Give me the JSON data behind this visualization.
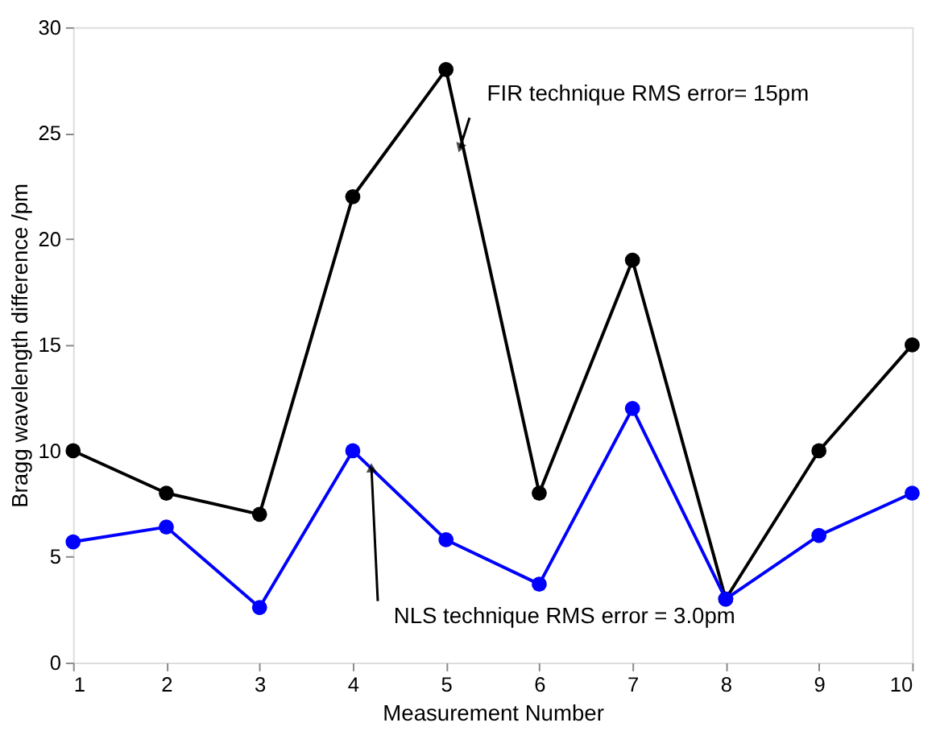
{
  "chart_data": {
    "type": "line",
    "xlabel": "Measurement Number",
    "ylabel": "Bragg wavelength difference /pm",
    "x": [
      1,
      2,
      3,
      4,
      5,
      6,
      7,
      8,
      9,
      10
    ],
    "series": [
      {
        "color": "#000000",
        "values": [
          10,
          8,
          7,
          22,
          28,
          8,
          19,
          3,
          10,
          15
        ]
      },
      {
        "color": "#0000ff",
        "values": [
          5.7,
          6.4,
          2.6,
          10,
          5.8,
          3.7,
          12,
          3,
          6,
          8
        ]
      }
    ],
    "xlim": [
      1,
      10
    ],
    "xticks": [
      1,
      2,
      3,
      4,
      5,
      6,
      7,
      8,
      9,
      10
    ],
    "ylim": [
      0,
      30
    ],
    "yticks": [
      0,
      5,
      10,
      15,
      20,
      25,
      30
    ],
    "annotations": [
      {
        "text": "FIR technique RMS error= 15pm",
        "x": 5.15,
        "y": 24.3
      },
      {
        "text": "NLS technique RMS error = 3.0pm",
        "x": 4.2,
        "y": 9.2
      }
    ],
    "marker": "circle",
    "line_style": "solid",
    "grid": false
  }
}
